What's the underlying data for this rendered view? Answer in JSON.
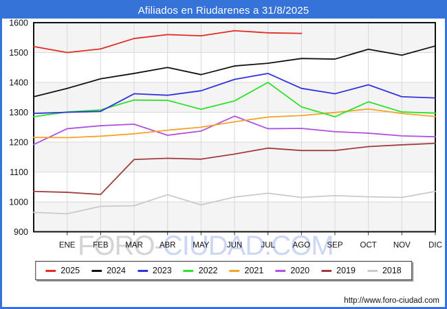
{
  "header": {
    "title": "Afiliados en Riudarenes a 31/8/2025",
    "bg_color": "#3673d8"
  },
  "watermark": {
    "part1": "FORO-",
    "part2": "CIUDAD.COM"
  },
  "footer": {
    "url": "http://www.foro-ciudad.com"
  },
  "chart_data": {
    "type": "line",
    "title": "Afiliados en Riudarenes a 31/8/2025",
    "categories": [
      "ENE",
      "FEB",
      "MAR",
      "ABR",
      "MAY",
      "JUN",
      "JUL",
      "AGO",
      "SEP",
      "OCT",
      "NOV",
      "DIC"
    ],
    "ylabel": "",
    "xlabel": "",
    "ylim": [
      900,
      1600
    ],
    "ytick_interval": 100,
    "y_tick_labels": [
      "1600",
      "1500",
      "1400",
      "1300",
      "1200",
      "1100",
      "1000",
      "900"
    ],
    "grid": true,
    "legend_position": "bottom",
    "band_colors": [
      "#f4f4f4",
      "#ffffff"
    ],
    "gridline_color": "#d8d8d8",
    "series_note": "start = value plotted on the y-axis (December of previous year); values = ENE..DIC (2025 only through AGO)",
    "series": [
      {
        "name": "2025",
        "color": "#e52a21",
        "start": 1520,
        "values": [
          1500,
          1512,
          1547,
          1560,
          1556,
          1573,
          1566,
          1564
        ]
      },
      {
        "name": "2024",
        "color": "#111111",
        "start": 1352,
        "values": [
          1380,
          1412,
          1430,
          1450,
          1426,
          1455,
          1464,
          1480,
          1478,
          1511,
          1491,
          1522
        ]
      },
      {
        "name": "2023",
        "color": "#3032dd",
        "start": 1296,
        "values": [
          1300,
          1303,
          1362,
          1357,
          1372,
          1410,
          1430,
          1380,
          1362,
          1392,
          1352,
          1348
        ]
      },
      {
        "name": "2022",
        "color": "#2be22b",
        "start": 1285,
        "values": [
          1301,
          1308,
          1341,
          1340,
          1310,
          1338,
          1400,
          1318,
          1285,
          1335,
          1301,
          1297
        ]
      },
      {
        "name": "2021",
        "color": "#f4a426",
        "start": 1216,
        "values": [
          1215,
          1220,
          1228,
          1240,
          1250,
          1268,
          1284,
          1289,
          1299,
          1311,
          1296,
          1286
        ]
      },
      {
        "name": "2020",
        "color": "#b150e2",
        "start": 1192,
        "values": [
          1245,
          1255,
          1260,
          1223,
          1237,
          1287,
          1245,
          1246,
          1235,
          1230,
          1221,
          1218
        ]
      },
      {
        "name": "2019",
        "color": "#a23c3c",
        "start": 1035,
        "values": [
          1032,
          1025,
          1142,
          1146,
          1143,
          1160,
          1180,
          1172,
          1172,
          1185,
          1191,
          1196
        ]
      },
      {
        "name": "2018",
        "color": "#c9c9c9",
        "start": 965,
        "values": [
          960,
          985,
          987,
          1024,
          990,
          1016,
          1029,
          1015,
          1021,
          1017,
          1015,
          1035
        ]
      }
    ]
  }
}
